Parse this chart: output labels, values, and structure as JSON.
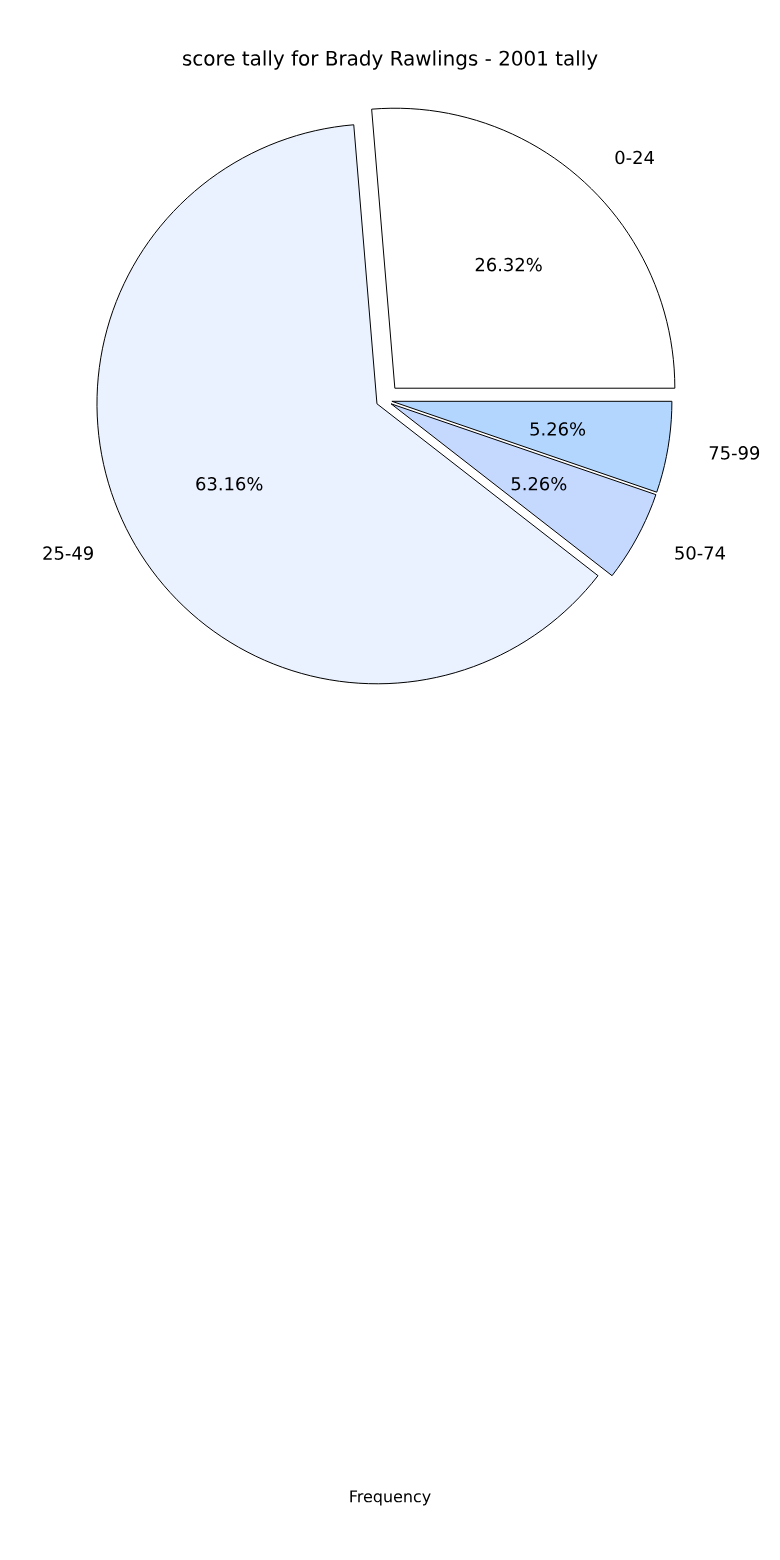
{
  "chart_data": {
    "type": "pie",
    "title": "score tally for Brady Rawlings - 2001 tally",
    "categories": [
      "0-24",
      "25-49",
      "50-74",
      "75-99"
    ],
    "values": [
      26.32,
      63.16,
      5.26,
      5.26
    ],
    "colors": [
      "#ffffff",
      "#eaf1ff",
      "#c5d9ff",
      "#b3d6ff"
    ],
    "value_labels": [
      "26.32%",
      "63.16%",
      "5.26%",
      "5.26%"
    ],
    "annotations": [
      "Frequency"
    ]
  }
}
